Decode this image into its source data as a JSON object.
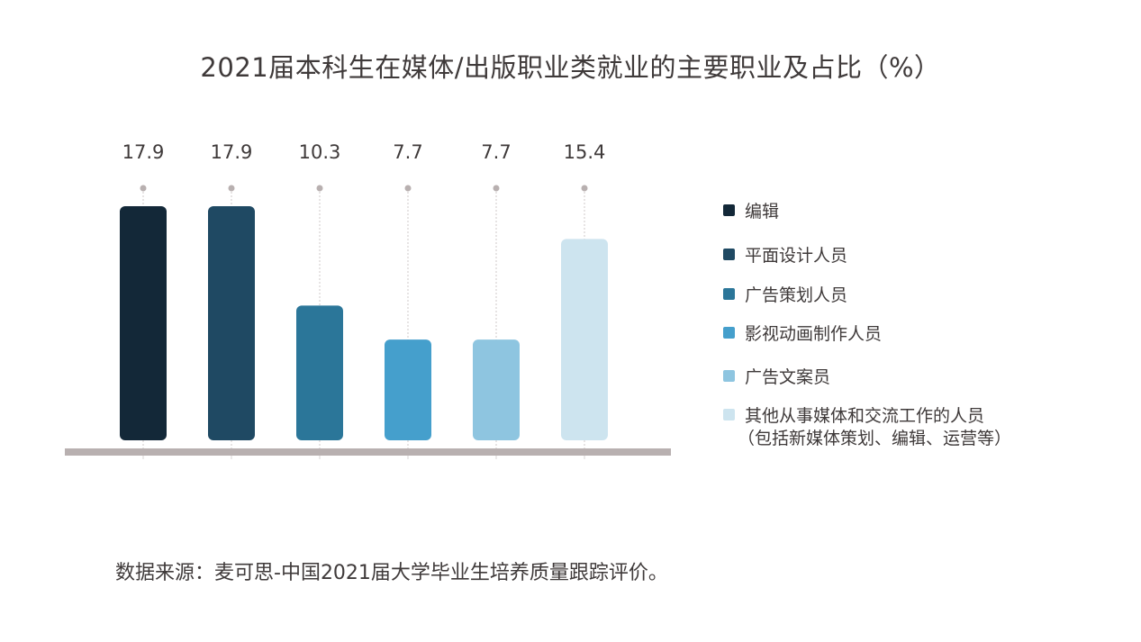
{
  "chart_data": {
    "type": "bar",
    "title": "2021届本科生在媒体/出版职业类就业的主要职业及占比（%）",
    "categories": [
      "编辑",
      "平面设计人员",
      "广告策划人员",
      "影视动画制作人员",
      "广告文案员",
      "其他从事媒体和交流工作的人员（包括新媒体策划、编辑、运营等）"
    ],
    "values": [
      17.9,
      17.9,
      10.3,
      7.7,
      7.7,
      15.4
    ],
    "value_labels": [
      "17.9",
      "17.9",
      "10.3",
      "7.7",
      "7.7",
      "15.4"
    ],
    "colors": [
      "#132838",
      "#1f4963",
      "#2b7699",
      "#459fcc",
      "#8ec5e0",
      "#cde4ef"
    ],
    "xlabel": "",
    "ylabel": "",
    "ylim": [
      0,
      17.9
    ],
    "grid": false,
    "legend_position": "right",
    "legend": [
      {
        "line1": "编辑",
        "line2": ""
      },
      {
        "line1": "平面设计人员",
        "line2": ""
      },
      {
        "line1": "广告策划人员",
        "line2": ""
      },
      {
        "line1": "影视动画制作人员",
        "line2": ""
      },
      {
        "line1": "广告文案员",
        "line2": ""
      },
      {
        "line1": "其他从事媒体和交流工作的人员",
        "line2": "（包括新媒体策划、编辑、运营等）"
      }
    ]
  },
  "source": "数据来源：麦可思-中国2021届大学毕业生培养质量跟踪评价。"
}
